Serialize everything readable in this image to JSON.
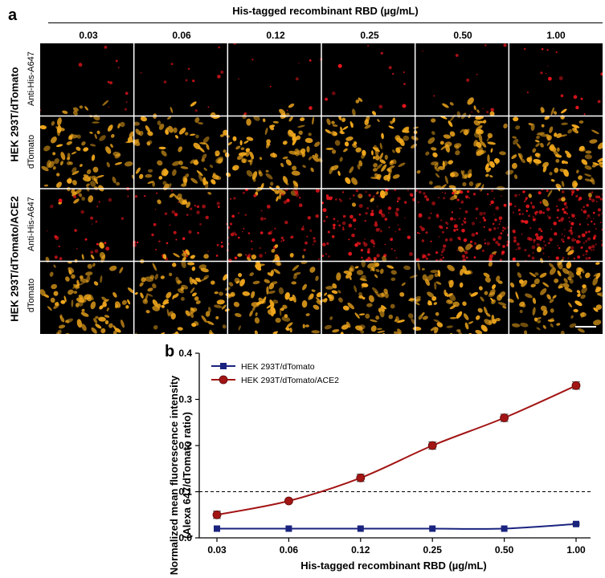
{
  "panel_a": {
    "letter": "a",
    "header": "His-tagged recombinant RBD (µg/mL)",
    "concentrations": [
      "0.03",
      "0.06",
      "0.12",
      "0.25",
      "0.50",
      "1.00"
    ],
    "groups": [
      {
        "name": "HEK 293T/dTomato",
        "rows": [
          "Anti-His-A647",
          "dTomato"
        ],
        "his_intensity": [
          0.02,
          0.02,
          0.02,
          0.02,
          0.02,
          0.03
        ]
      },
      {
        "name": "HEK 293T/dTomato/ACE2",
        "rows": [
          "Anti-His-A647",
          "dTomato"
        ],
        "his_intensity": [
          0.05,
          0.08,
          0.13,
          0.2,
          0.26,
          0.33
        ]
      }
    ],
    "colors": {
      "dtomato": "#f2a81d",
      "a647": "#e8161c",
      "background": "#000000"
    }
  },
  "panel_b": {
    "letter": "b"
  },
  "chart_data": {
    "type": "line",
    "categories": [
      "0.03",
      "0.06",
      "0.12",
      "0.25",
      "0.50",
      "1.00"
    ],
    "xlabel": "His-tagged recombinant RBD (µg/mL)",
    "ylabel_line1": "Normalized mean fluorescence intensity",
    "ylabel_line2": "(Alexa 647/dTomato ratio)",
    "ylim": [
      0,
      0.4
    ],
    "yticks": [
      "0.0",
      "0.1",
      "0.2",
      "0.3",
      "0.4"
    ],
    "threshold": 0.1,
    "series": [
      {
        "name": "HEK 293T/dTomato",
        "values": [
          0.02,
          0.02,
          0.02,
          0.02,
          0.02,
          0.03
        ],
        "errors": [
          0,
          0,
          0,
          0,
          0,
          0.002
        ],
        "color": "#1a237e",
        "marker": "square"
      },
      {
        "name": "HEK 293T/dTomato/ACE2",
        "values": [
          0.05,
          0.08,
          0.13,
          0.2,
          0.26,
          0.33
        ],
        "errors": [
          0.008,
          0.003,
          0.008,
          0.008,
          0.008,
          0.008
        ],
        "color": "#a31515",
        "marker": "circle"
      }
    ]
  }
}
